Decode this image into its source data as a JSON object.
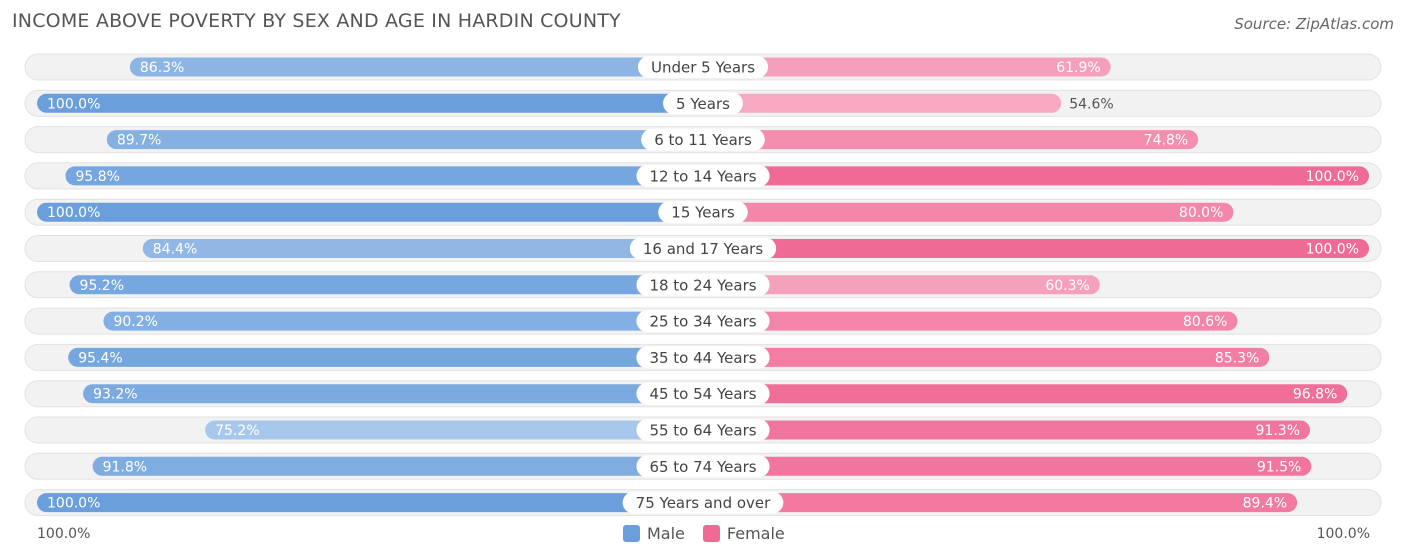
{
  "title": "INCOME ABOVE POVERTY BY SEX AND AGE IN HARDIN COUNTY",
  "source": "Source: ZipAtlas.com",
  "axis": {
    "left_label": "100.0%",
    "right_label": "100.0%"
  },
  "legend": [
    {
      "label": "Male",
      "color": "#6a9fdc"
    },
    {
      "label": "Female",
      "color": "#f06a96"
    }
  ],
  "chart_data": {
    "type": "bar",
    "orientation": "horizontal-diverging",
    "title": "INCOME ABOVE POVERTY BY SEX AND AGE IN HARDIN COUNTY",
    "categories": [
      "Under 5 Years",
      "5 Years",
      "6 to 11 Years",
      "12 to 14 Years",
      "15 Years",
      "16 and 17 Years",
      "18 to 24 Years",
      "25 to 34 Years",
      "35 to 44 Years",
      "45 to 54 Years",
      "55 to 64 Years",
      "65 to 74 Years",
      "75 Years and over"
    ],
    "series": [
      {
        "name": "Male",
        "values": [
          86.3,
          100.0,
          89.7,
          95.8,
          100.0,
          84.4,
          95.2,
          90.2,
          95.4,
          93.2,
          75.2,
          91.8,
          100.0
        ],
        "labels": [
          "86.3%",
          "100.0%",
          "89.7%",
          "95.8%",
          "100.0%",
          "84.4%",
          "95.2%",
          "90.2%",
          "95.4%",
          "93.2%",
          "75.2%",
          "91.8%",
          "100.0%"
        ]
      },
      {
        "name": "Female",
        "values": [
          61.9,
          54.6,
          74.8,
          100.0,
          80.0,
          100.0,
          60.3,
          80.6,
          85.3,
          96.8,
          91.3,
          91.5,
          89.4
        ],
        "labels": [
          "61.9%",
          "54.6%",
          "74.8%",
          "100.0%",
          "80.0%",
          "100.0%",
          "60.3%",
          "80.6%",
          "85.3%",
          "96.8%",
          "91.3%",
          "91.5%",
          "89.4%"
        ]
      }
    ],
    "xlim": [
      0,
      100
    ],
    "legend_position": "bottom-center"
  }
}
